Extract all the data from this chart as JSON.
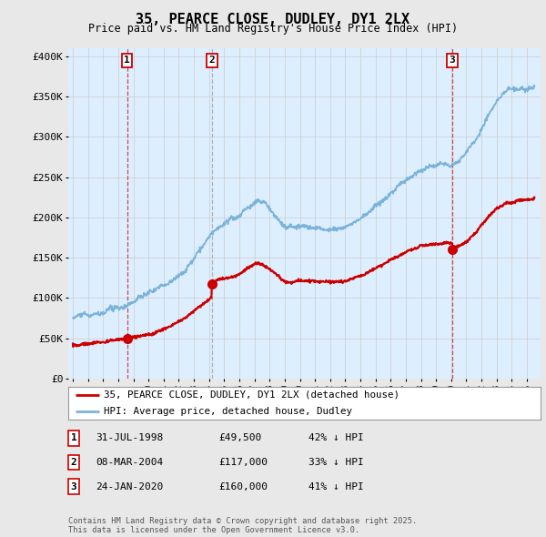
{
  "title": "35, PEARCE CLOSE, DUDLEY, DY1 2LX",
  "subtitle": "Price paid vs. HM Land Registry's House Price Index (HPI)",
  "bg_color": "#e8e8e8",
  "plot_bg_color": "#ddeeff",
  "hpi_color": "#7ab3d9",
  "price_color": "#cc0000",
  "ylim": [
    0,
    410000
  ],
  "yticks": [
    0,
    50000,
    100000,
    150000,
    200000,
    250000,
    300000,
    350000,
    400000
  ],
  "ytick_labels": [
    "£0",
    "£50K",
    "£100K",
    "£150K",
    "£200K",
    "£250K",
    "£300K",
    "£350K",
    "£400K"
  ],
  "sales": [
    {
      "label": "1",
      "date_num": 1998.58,
      "price": 49500
    },
    {
      "label": "2",
      "date_num": 2004.18,
      "price": 117000
    },
    {
      "label": "3",
      "date_num": 2020.07,
      "price": 160000
    }
  ],
  "legend_entries": [
    "35, PEARCE CLOSE, DUDLEY, DY1 2LX (detached house)",
    "HPI: Average price, detached house, Dudley"
  ],
  "table_rows": [
    {
      "num": "1",
      "date": "31-JUL-1998",
      "price": "£49,500",
      "hpi": "42% ↓ HPI"
    },
    {
      "num": "2",
      "date": "08-MAR-2004",
      "price": "£117,000",
      "hpi": "33% ↓ HPI"
    },
    {
      "num": "3",
      "date": "24-JAN-2020",
      "price": "£160,000",
      "hpi": "41% ↓ HPI"
    }
  ],
  "footnote": "Contains HM Land Registry data © Crown copyright and database right 2025.\nThis data is licensed under the Open Government Licence v3.0.",
  "xlim_left": 1994.7,
  "xlim_right": 2025.9
}
